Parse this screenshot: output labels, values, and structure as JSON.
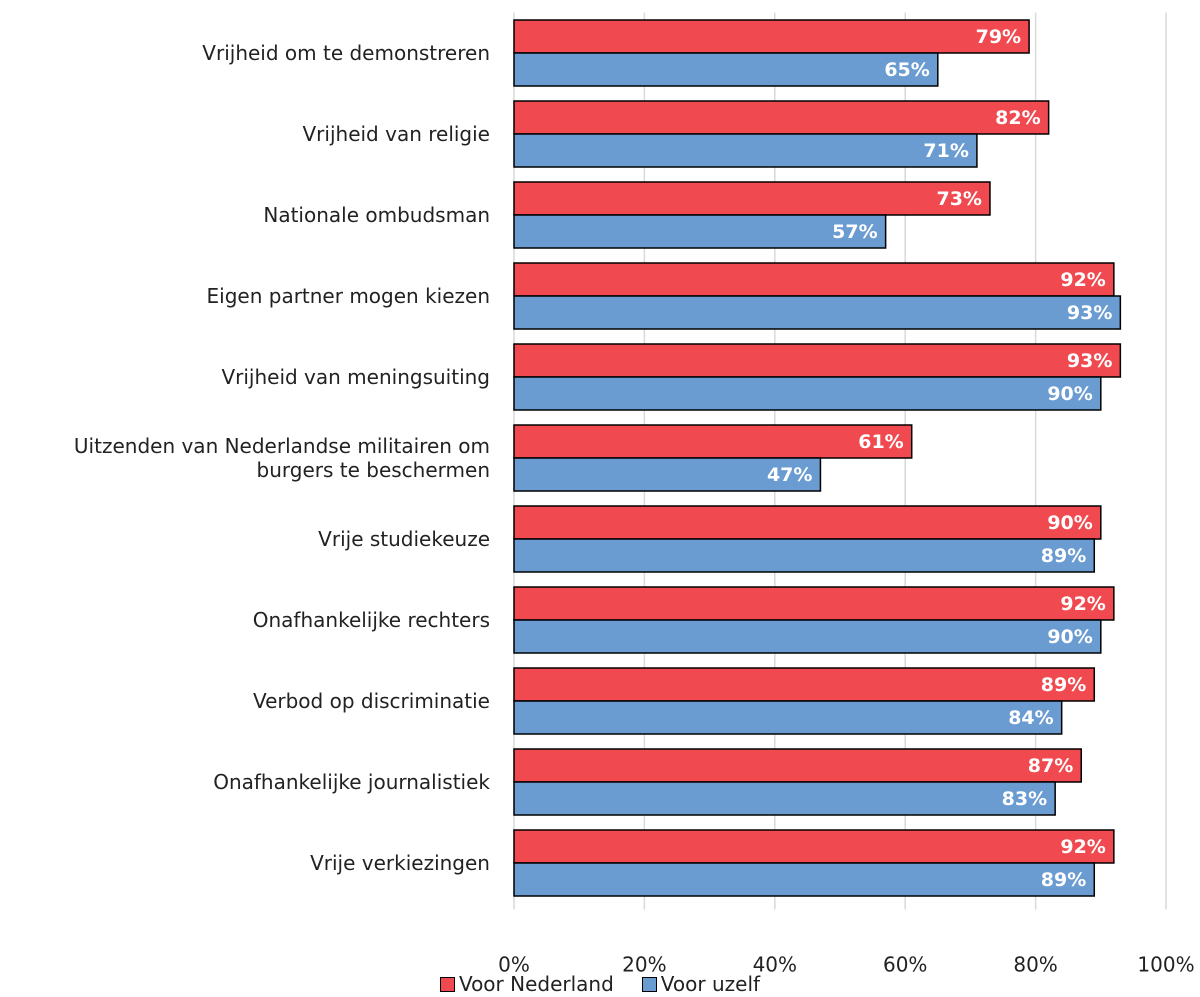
{
  "chart_data": {
    "type": "bar",
    "orientation": "horizontal",
    "categories": [
      "Vrijheid om te demonstreren",
      "Vrijheid van religie",
      "Nationale ombudsman",
      "Eigen partner mogen kiezen",
      "Vrijheid van meningsuiting",
      "Uitzenden van Nederlandse militairen om burgers te beschermen",
      "Vrije studiekeuze",
      "Onafhankelijke rechters",
      "Verbod op discriminatie",
      "Onafhankelijke journalistiek",
      "Vrije verkiezingen"
    ],
    "series": [
      {
        "name": "Voor Nederland",
        "color": "#f04a50",
        "values": [
          79,
          82,
          73,
          92,
          93,
          61,
          90,
          92,
          89,
          87,
          92
        ],
        "value_labels": [
          "79%",
          "82%",
          "73%",
          "92%",
          "93%",
          "61%",
          "90%",
          "92%",
          "89%",
          "87%",
          "92%"
        ]
      },
      {
        "name": "Voor uzelf",
        "color": "#6a9bd1",
        "values": [
          65,
          71,
          57,
          93,
          90,
          47,
          89,
          90,
          84,
          83,
          89
        ],
        "value_labels": [
          "65%",
          "71%",
          "57%",
          "93%",
          "90%",
          "47%",
          "89%",
          "90%",
          "84%",
          "83%",
          "89%"
        ]
      }
    ],
    "xlim": [
      0,
      100
    ],
    "xticks": [
      {
        "value": 0,
        "label": "0%"
      },
      {
        "value": 20,
        "label": "20%"
      },
      {
        "value": 40,
        "label": "40%"
      },
      {
        "value": 60,
        "label": "60%"
      },
      {
        "value": 80,
        "label": "80%"
      },
      {
        "value": 100,
        "label": "100%"
      }
    ],
    "grid": true,
    "legend": "bottom"
  }
}
